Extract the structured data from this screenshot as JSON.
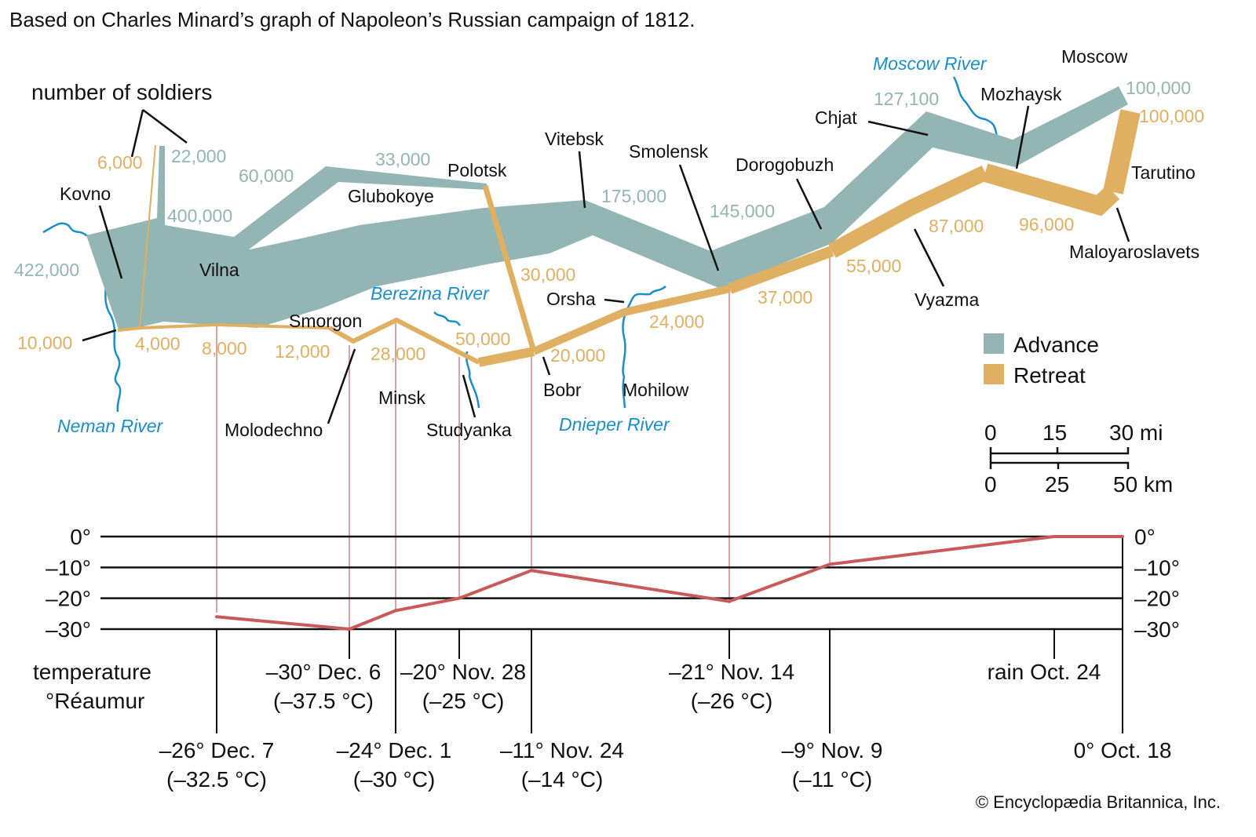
{
  "title": "Based on Charles Minard’s graph of Napoleon’s Russian campaign of 1812.",
  "soldiers_label": "number of soldiers",
  "colors": {
    "advance": "#93b5b3",
    "retreat": "#e0b062",
    "river": "#1b8ec9",
    "temperature": "#c95a5a"
  },
  "legend": {
    "advance": "Advance",
    "retreat": "Retreat"
  },
  "places": {
    "kovno": "Kovno",
    "vilna": "Vilna",
    "glubokoye": "Glubokoye",
    "polotsk": "Polotsk",
    "smorgon": "Smorgon",
    "molodechno": "Molodechno",
    "minsk": "Minsk",
    "studyanka": "Studyanka",
    "bobr": "Bobr",
    "orsha": "Orsha",
    "mohilow": "Mohilow",
    "vitebsk": "Vitebsk",
    "smolensk": "Smolensk",
    "dorogobuzh": "Dorogobuzh",
    "chjat": "Chjat",
    "mozhaysk": "Mozhaysk",
    "moscow": "Moscow",
    "tarutino": "Tarutino",
    "maloyaroslavets": "Maloyaroslavets",
    "vyazma": "Vyazma"
  },
  "rivers": {
    "neman": "Neman River",
    "berezina": "Berezina River",
    "dnieper": "Dnieper River",
    "moscow": "Moscow River"
  },
  "advance_counts": {
    "a422": "422,000",
    "a400": "400,000",
    "a22": "22,000",
    "a60": "60,000",
    "a33": "33,000",
    "a175": "175,000",
    "a145": "145,000",
    "a127": "127,100",
    "a100": "100,000"
  },
  "retreat_counts": {
    "r6": "6,000",
    "r10": "10,000",
    "r4": "4,000",
    "r8": "8,000",
    "r12": "12,000",
    "r28": "28,000",
    "r50": "50,000",
    "r30": "30,000",
    "r20": "20,000",
    "r24": "24,000",
    "r37": "37,000",
    "r55": "55,000",
    "r87": "87,000",
    "r96": "96,000",
    "r100": "100,000"
  },
  "scale": {
    "mi": [
      "0",
      "15",
      "30 mi"
    ],
    "km": [
      "0",
      "25",
      "50 km"
    ]
  },
  "chart_data": {
    "type": "line",
    "ylabel": "temperature °Réaumur",
    "yticks": [
      "0°",
      "–10°",
      "–20°",
      "–30°"
    ],
    "ylim": [
      -30,
      0
    ],
    "grid": true,
    "points": [
      {
        "date": "Dec. 7",
        "temp": -26,
        "label": "–26° Dec. 7",
        "celsius": "(–32.5 °C)"
      },
      {
        "date": "Dec. 6",
        "temp": -30,
        "label": "–30° Dec. 6",
        "celsius": "(–37.5 °C)"
      },
      {
        "date": "Dec. 1",
        "temp": -24,
        "label": "–24° Dec. 1",
        "celsius": "(–30 °C)"
      },
      {
        "date": "Nov. 28",
        "temp": -20,
        "label": "–20° Nov. 28",
        "celsius": "(–25 °C)"
      },
      {
        "date": "Nov. 24",
        "temp": -11,
        "label": "–11° Nov. 24",
        "celsius": "(–14 °C)"
      },
      {
        "date": "Nov. 14",
        "temp": -21,
        "label": "–21° Nov. 14",
        "celsius": "(–26 °C)"
      },
      {
        "date": "Nov. 9",
        "temp": -9,
        "label": "–9° Nov. 9",
        "celsius": "(–11 °C)"
      },
      {
        "date": "Oct. 24",
        "temp": 0,
        "label": "rain Oct. 24",
        "celsius": ""
      },
      {
        "date": "Oct. 18",
        "temp": 0,
        "label": "0° Oct. 18",
        "celsius": ""
      }
    ]
  },
  "copyright": "© Encyclopædia Britannica, Inc."
}
